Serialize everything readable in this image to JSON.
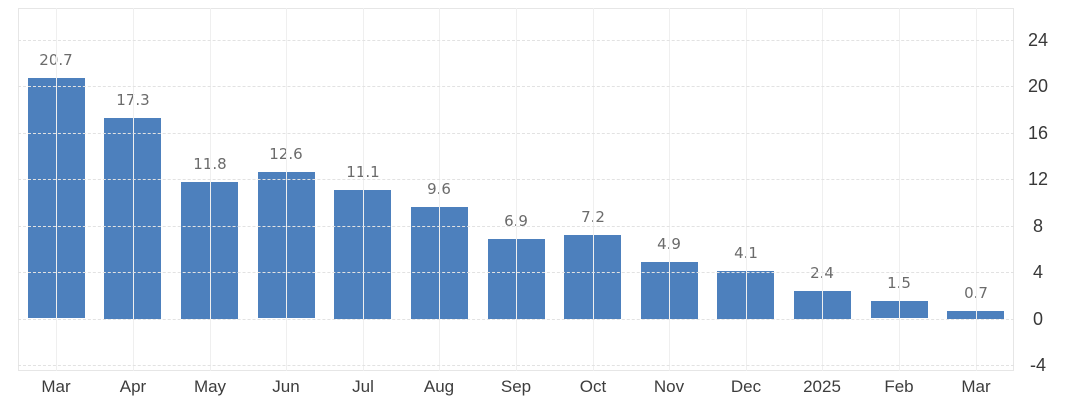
{
  "chart_data": {
    "type": "bar",
    "title": "",
    "xlabel": "",
    "ylabel": "",
    "categories": [
      "Mar",
      "Apr",
      "May",
      "Jun",
      "Jul",
      "Aug",
      "Sep",
      "Oct",
      "Nov",
      "Dec",
      "2025",
      "Feb",
      "Mar"
    ],
    "values": [
      20.7,
      17.3,
      11.8,
      12.6,
      11.1,
      9.6,
      6.9,
      7.2,
      4.9,
      4.1,
      2.4,
      1.5,
      0.7
    ],
    "value_labels": [
      "20.7",
      "17.3",
      "11.8",
      "12.6",
      "11.1",
      "9.6",
      "6.9",
      "7.2",
      "4.9",
      "4.1",
      "2.4",
      "1.5",
      "0.7"
    ],
    "y_ticks": [
      24,
      20,
      16,
      12,
      8,
      4,
      0,
      -4
    ],
    "ylim": [
      -4.5,
      26.75
    ],
    "axis_side": "right",
    "grid": true,
    "legend": "none",
    "colors": {
      "bar_fill": "#4d80bd",
      "value_label": "#6b6b6b",
      "x_tick_label": "#3d3d3d",
      "y_tick_label": "#383838",
      "gridline_h": "#e2e2e2",
      "gridline_v": "#efefef",
      "plot_border": "#e6e6e6",
      "background": "#ffffff"
    }
  }
}
